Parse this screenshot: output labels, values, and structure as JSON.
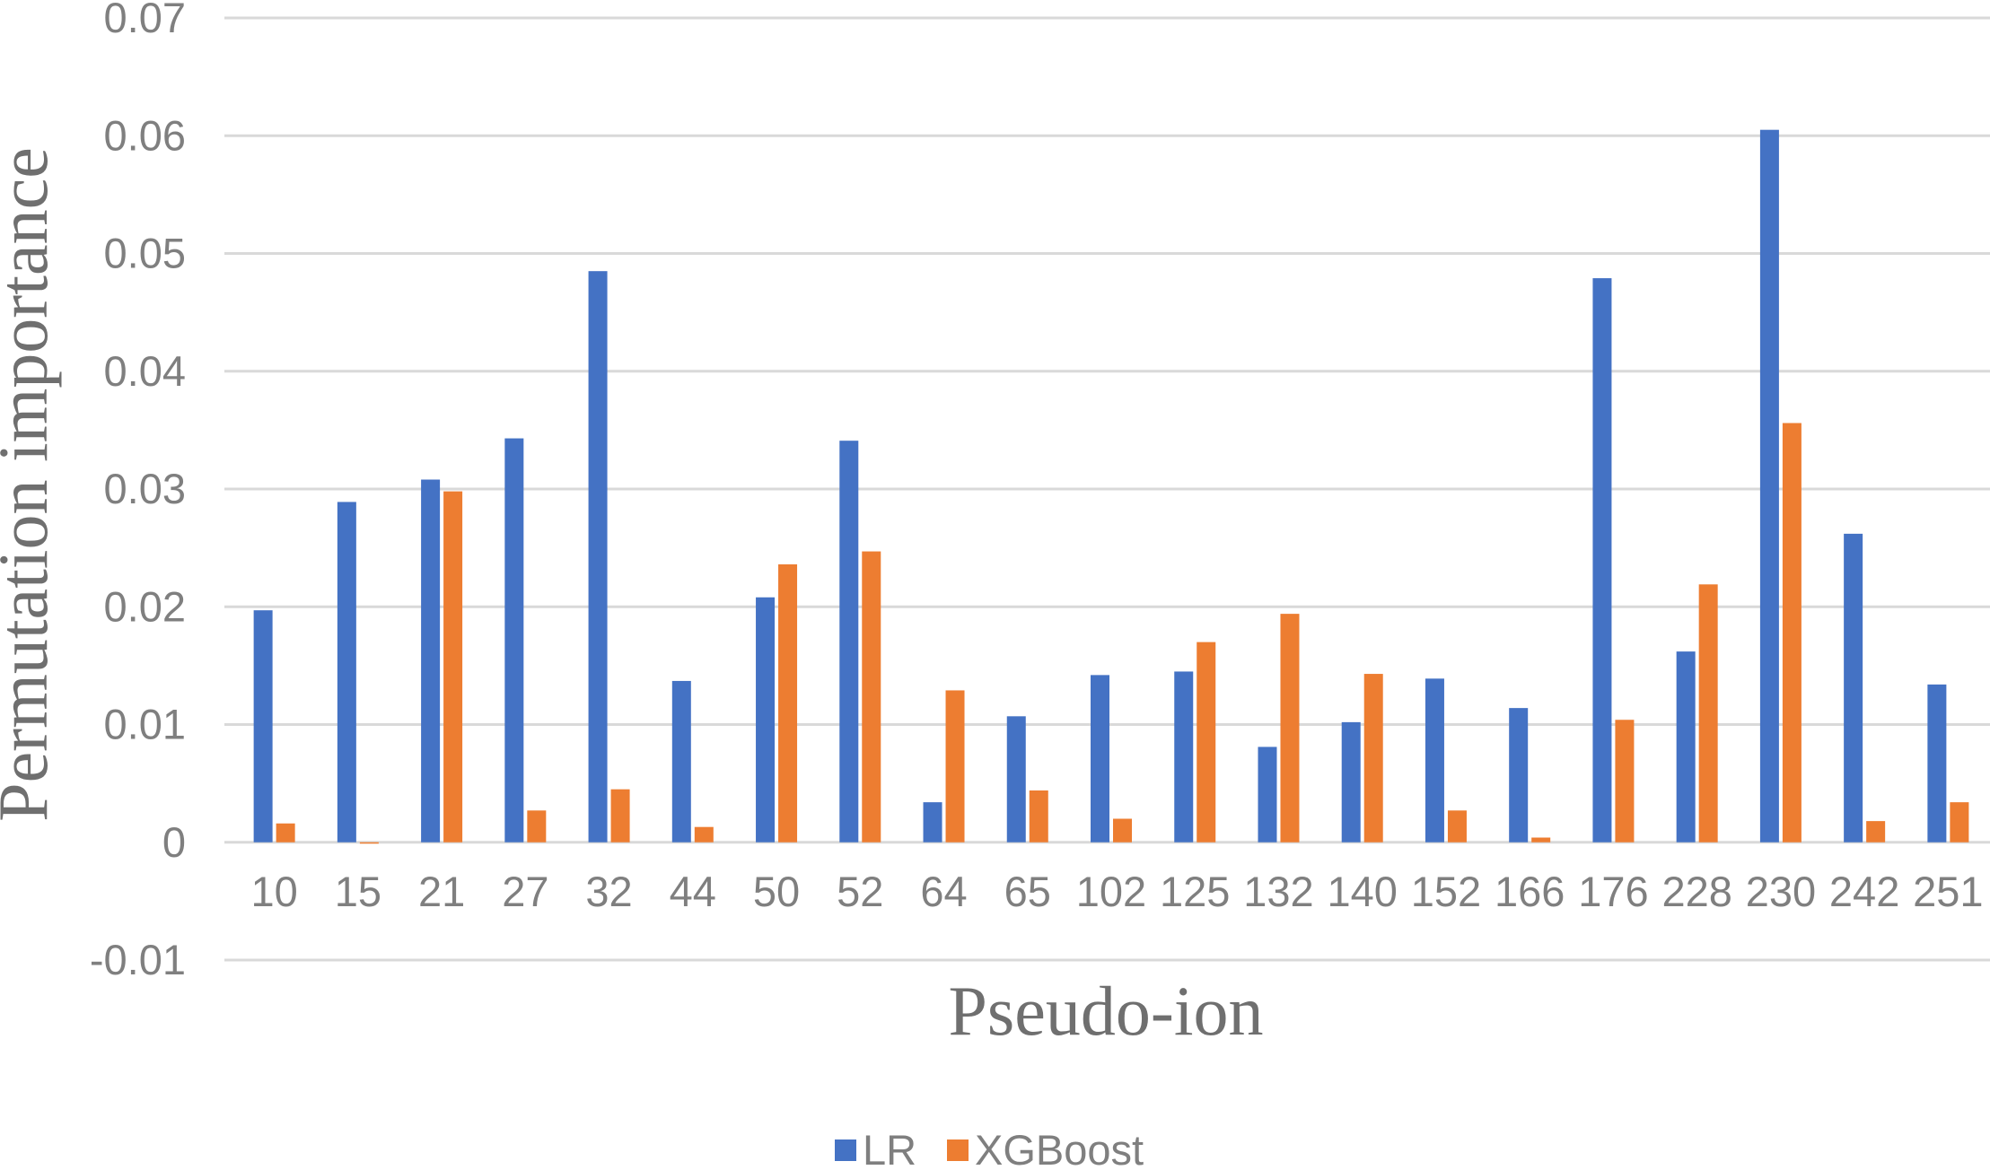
{
  "chart_data": {
    "type": "bar",
    "title": "",
    "xlabel": "Pseudo-ion",
    "ylabel": "Permutation importance",
    "ylim": [
      -0.01,
      0.07
    ],
    "yticks": [
      "-0.01",
      "0",
      "0.01",
      "0.02",
      "0.03",
      "0.04",
      "0.05",
      "0.06",
      "0.07"
    ],
    "grid": true,
    "legend_position": "bottom",
    "categories": [
      "10",
      "15",
      "21",
      "27",
      "32",
      "44",
      "50",
      "52",
      "64",
      "65",
      "102",
      "125",
      "132",
      "140",
      "152",
      "166",
      "176",
      "228",
      "230",
      "242",
      "251"
    ],
    "series": [
      {
        "name": "LR",
        "color": "#4472c4",
        "values": [
          0.0197,
          0.0289,
          0.0308,
          0.0343,
          0.0485,
          0.0137,
          0.0208,
          0.0341,
          0.0034,
          0.0107,
          0.0142,
          0.0145,
          0.0081,
          0.0102,
          0.0139,
          0.0114,
          0.0479,
          0.0162,
          0.0605,
          0.0262,
          0.0134
        ]
      },
      {
        "name": "XGBoost",
        "color": "#ed7d31",
        "values": [
          0.0016,
          -0.0001,
          0.0298,
          0.0027,
          0.0045,
          0.0013,
          0.0236,
          0.0247,
          0.0129,
          0.0044,
          0.002,
          0.017,
          0.0194,
          0.0143,
          0.0027,
          0.0004,
          0.0104,
          0.0219,
          0.0356,
          0.0018,
          0.0034
        ]
      }
    ]
  }
}
